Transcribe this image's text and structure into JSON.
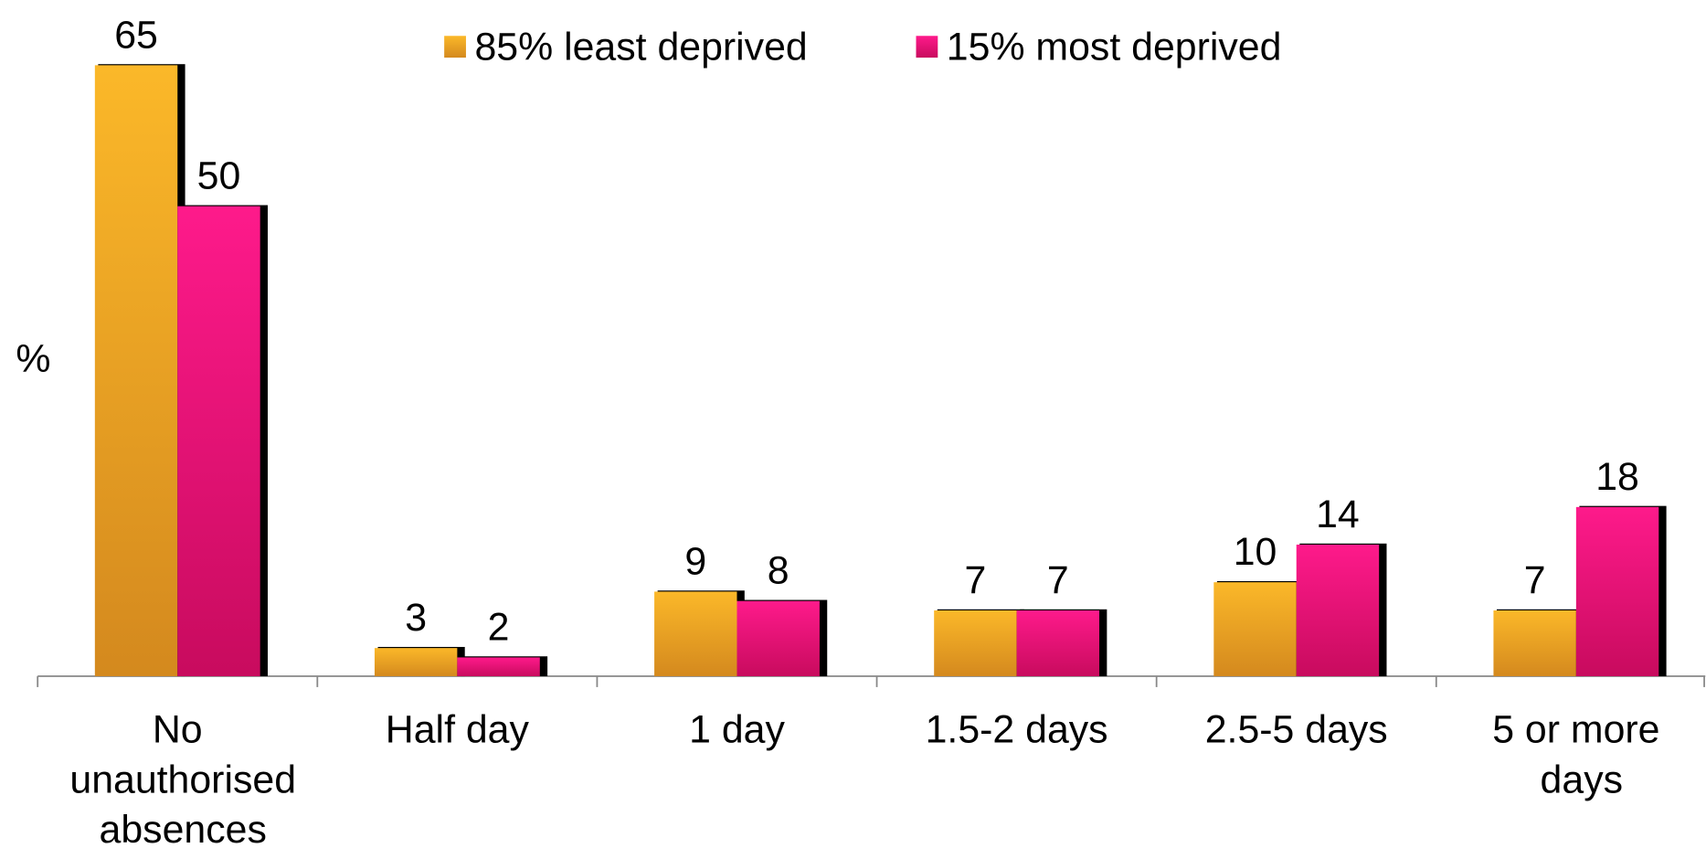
{
  "chart_data": {
    "type": "bar",
    "y_label": "%",
    "categories": [
      "No unauthorised absences",
      "Half day",
      "1 day",
      "1.5-2 days",
      "2.5-5 days",
      "5 or more days"
    ],
    "series": [
      {
        "name": "85% least deprived",
        "color": "#fbb829",
        "values": [
          65,
          3,
          9,
          7,
          10,
          7
        ]
      },
      {
        "name": "15% most deprived",
        "color": "#fe1a8b",
        "values": [
          50,
          2,
          8,
          7,
          14,
          18
        ]
      }
    ],
    "legend": "top"
  }
}
